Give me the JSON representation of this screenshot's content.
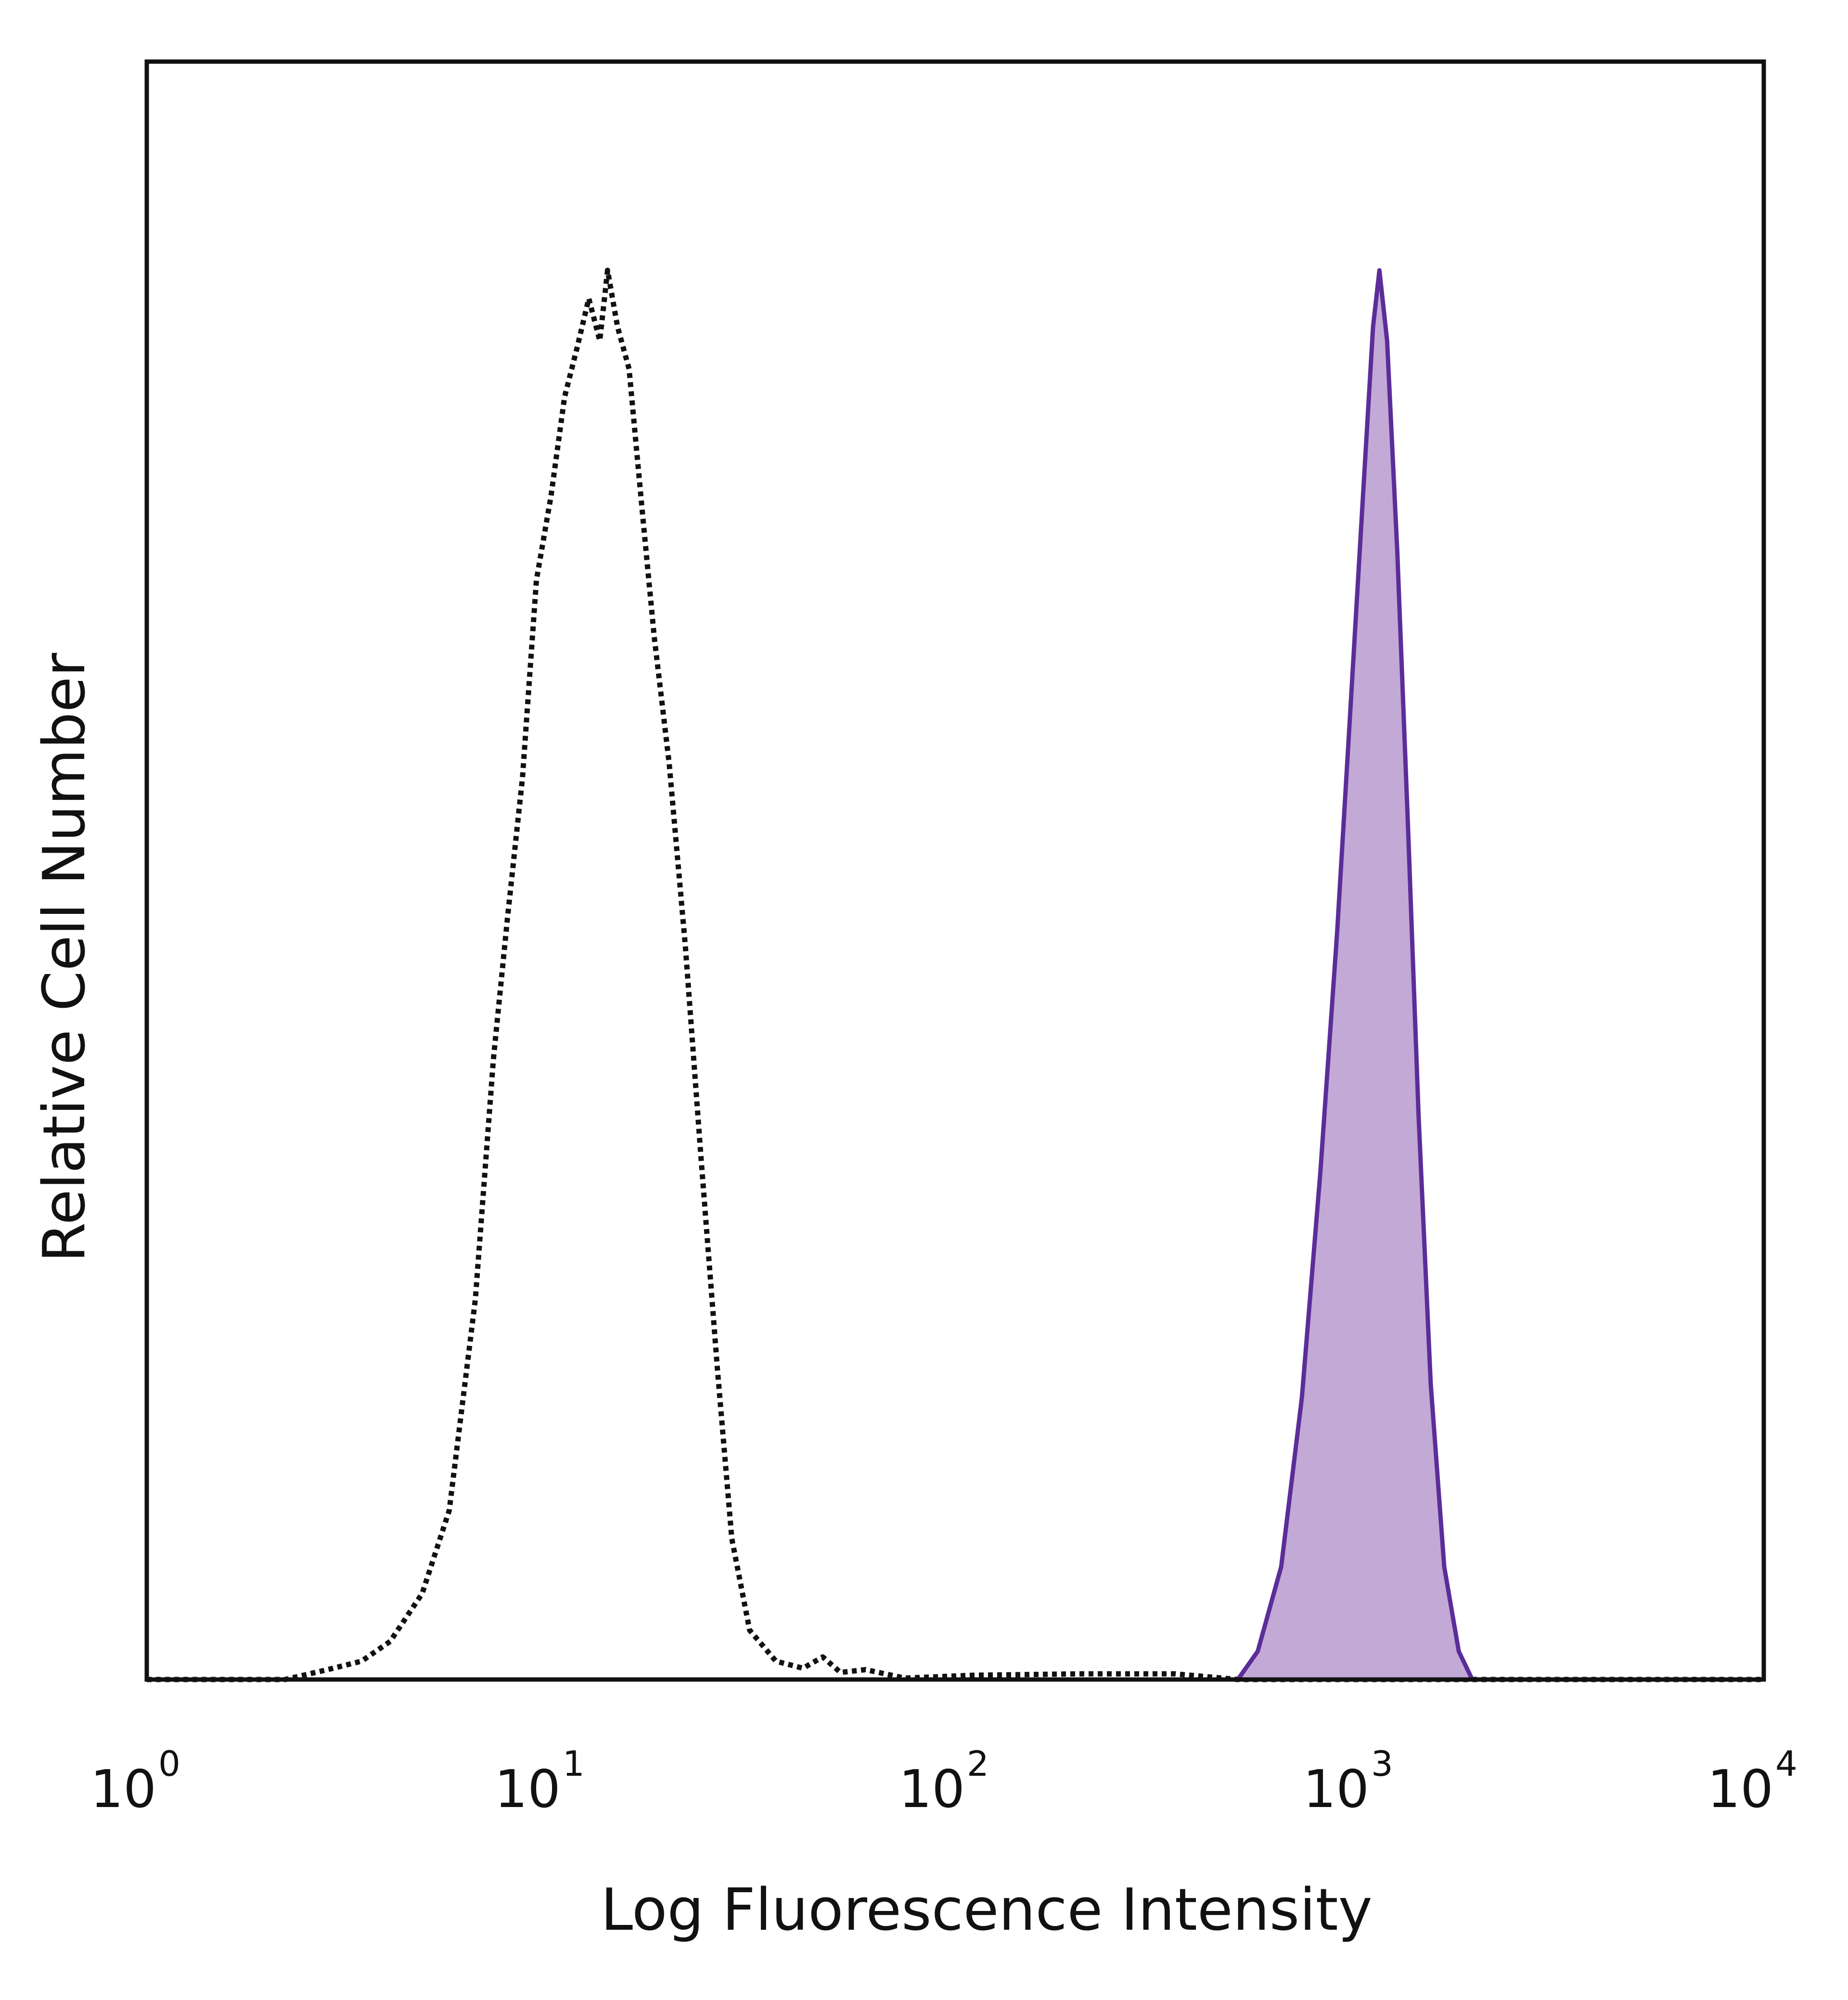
{
  "chart_data": {
    "type": "area",
    "title": "",
    "xlabel": "Log Fluorescence Intensity",
    "ylabel": "Relative Cell Number",
    "x_scale": "log",
    "xlim": [
      1,
      10000
    ],
    "ylim": [
      0,
      1
    ],
    "x_ticks": [
      {
        "base": "10",
        "exp": "0",
        "value": 1
      },
      {
        "base": "10",
        "exp": "1",
        "value": 10
      },
      {
        "base": "10",
        "exp": "2",
        "value": 100
      },
      {
        "base": "10",
        "exp": "3",
        "value": 1000
      },
      {
        "base": "10",
        "exp": "4",
        "value": 10000
      }
    ],
    "grid": false,
    "legend": "none",
    "series": [
      {
        "style": "dotted",
        "color": "#111111",
        "fill": "none",
        "points": [
          [
            1,
            0.0
          ],
          [
            2.2,
            0.0
          ],
          [
            2.8,
            0.007
          ],
          [
            3.4,
            0.013
          ],
          [
            4.0,
            0.027
          ],
          [
            4.8,
            0.061
          ],
          [
            5.6,
            0.12
          ],
          [
            6.5,
            0.27
          ],
          [
            7.2,
            0.44
          ],
          [
            7.8,
            0.54
          ],
          [
            8.5,
            0.64
          ],
          [
            9.2,
            0.78
          ],
          [
            10.0,
            0.84
          ],
          [
            10.8,
            0.91
          ],
          [
            11.6,
            0.945
          ],
          [
            12.4,
            0.98
          ],
          [
            13.2,
            0.95
          ],
          [
            13.8,
            1.0
          ],
          [
            14.6,
            0.96
          ],
          [
            15.6,
            0.93
          ],
          [
            16.8,
            0.83
          ],
          [
            18.0,
            0.74
          ],
          [
            19.6,
            0.65
          ],
          [
            21.5,
            0.52
          ],
          [
            23.5,
            0.37
          ],
          [
            25.8,
            0.22
          ],
          [
            28.0,
            0.1
          ],
          [
            31.0,
            0.035
          ],
          [
            36.0,
            0.013
          ],
          [
            42.0,
            0.008
          ],
          [
            47.0,
            0.016
          ],
          [
            52.0,
            0.005
          ],
          [
            60.0,
            0.007
          ],
          [
            75.0,
            0.001
          ],
          [
            110.0,
            0.003
          ],
          [
            200.0,
            0.004
          ],
          [
            350.0,
            0.004
          ],
          [
            500.0,
            0.0
          ],
          [
            10000,
            0.0
          ]
        ]
      },
      {
        "style": "solid",
        "color": "#5b2d99",
        "fill": "#c3a9d6",
        "points": [
          [
            1,
            0.0
          ],
          [
            2.5,
            0.0
          ],
          [
            500.0,
            0.0
          ],
          [
            560.0,
            0.02
          ],
          [
            640.0,
            0.08
          ],
          [
            720.0,
            0.2
          ],
          [
            800.0,
            0.36
          ],
          [
            880.0,
            0.53
          ],
          [
            950.0,
            0.69
          ],
          [
            1020.0,
            0.84
          ],
          [
            1080.0,
            0.96
          ],
          [
            1120.0,
            1.0
          ],
          [
            1170.0,
            0.95
          ],
          [
            1240.0,
            0.8
          ],
          [
            1320.0,
            0.6
          ],
          [
            1400.0,
            0.4
          ],
          [
            1500.0,
            0.21
          ],
          [
            1620.0,
            0.08
          ],
          [
            1760.0,
            0.02
          ],
          [
            1900.0,
            0.0
          ],
          [
            10000,
            0.0
          ]
        ]
      }
    ]
  }
}
